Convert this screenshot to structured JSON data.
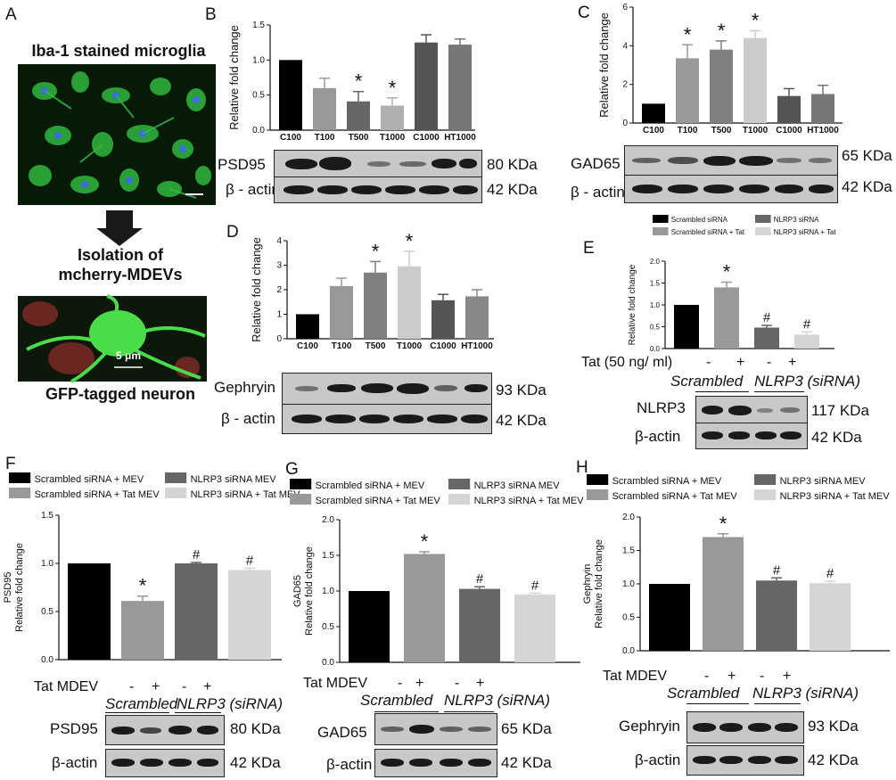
{
  "panels": {
    "A": {
      "label": "A",
      "title_top": "Iba-1 stained microglia",
      "step": "Isolation of",
      "step2": "mcherry-MDEVs",
      "title_bottom": "GFP-tagged neuron",
      "scale": "5 μm"
    },
    "B": {
      "label": "B"
    },
    "C": {
      "label": "C"
    },
    "D": {
      "label": "D"
    },
    "E": {
      "label": "E"
    },
    "F": {
      "label": "F"
    },
    "G": {
      "label": "G"
    },
    "H": {
      "label": "H"
    }
  },
  "blots": {
    "B": [
      {
        "name": "PSD95",
        "kda": "80 KDa"
      },
      {
        "name": "β - actin",
        "kda": "42 KDa"
      }
    ],
    "C": [
      {
        "name": "GAD65",
        "kda": "65 KDa"
      },
      {
        "name": "β - actin",
        "kda": "42 KDa"
      }
    ],
    "D": [
      {
        "name": "Gephryin",
        "kda": "93 KDa"
      },
      {
        "name": "β - actin",
        "kda": "42 KDa"
      }
    ],
    "E": [
      {
        "name": "NLRP3",
        "kda": "117 KDa"
      },
      {
        "name": "β-actin",
        "kda": "42 KDa"
      }
    ],
    "F": [
      {
        "name": "PSD95",
        "kda": "80 KDa"
      },
      {
        "name": "β-actin",
        "kda": "42 KDa"
      }
    ],
    "G": [
      {
        "name": "GAD65",
        "kda": "65 KDa"
      },
      {
        "name": "β-actin",
        "kda": "42 KDa"
      }
    ],
    "H": [
      {
        "name": "Gephryin",
        "kda": "93 KDa"
      },
      {
        "name": "β-actin",
        "kda": "42 KDa"
      }
    ]
  },
  "treatment_rows": {
    "E": {
      "label": "Tat (50 ng/ ml)",
      "signs": [
        "-",
        "+",
        "-",
        "+"
      ],
      "group1": "Scrambled",
      "group2": "NLRP3 (siRNA)"
    },
    "F": {
      "label": "Tat MDEV",
      "signs": [
        "-",
        "+",
        "-",
        "+"
      ],
      "group1": "Scrambled",
      "group2": "NLRP3 (siRNA)"
    },
    "G": {
      "label": "Tat MDEV",
      "signs": [
        "-",
        "+",
        "-",
        "+"
      ],
      "group1": "Scrambled",
      "group2": "NLRP3 (siRNA)"
    },
    "H": {
      "label": "Tat MDEV",
      "signs": [
        "-",
        "+",
        "-",
        "+"
      ],
      "group1": "Scrambled",
      "group2": "NLRP3 (siRNA)"
    }
  },
  "chart_data": [
    {
      "panel": "B",
      "type": "bar",
      "categories": [
        "C100",
        "T100",
        "T500",
        "T1000",
        "C1000",
        "HT1000"
      ],
      "values": [
        1.0,
        0.6,
        0.41,
        0.35,
        1.25,
        1.22
      ],
      "errors": [
        0,
        0.14,
        0.14,
        0.11,
        0.11,
        0.08
      ],
      "marks": [
        "",
        "",
        "*",
        "*",
        "",
        ""
      ],
      "colors": [
        "#000000",
        "#999999",
        "#666666",
        "#b0b0b0",
        "#555555",
        "#777777"
      ],
      "ylabel": "Relative fold change",
      "ylim": [
        0,
        1.5
      ],
      "yticks": [
        0.0,
        0.5,
        1.0,
        1.5
      ],
      "ytick_labels": [
        "0.0",
        "0.5",
        "1.0",
        "1.5"
      ]
    },
    {
      "panel": "C",
      "type": "bar",
      "categories": [
        "C100",
        "T100",
        "T500",
        "T1000",
        "C1000",
        "HT1000"
      ],
      "values": [
        1.0,
        3.35,
        3.8,
        4.4,
        1.4,
        1.5
      ],
      "errors": [
        0,
        0.7,
        0.45,
        0.38,
        0.38,
        0.45
      ],
      "marks": [
        "",
        "*",
        "*",
        "*",
        "",
        ""
      ],
      "colors": [
        "#000000",
        "#999999",
        "#808080",
        "#cccccc",
        "#555555",
        "#777777"
      ],
      "ylabel": "Relative fold change",
      "ylim": [
        0,
        6
      ],
      "yticks": [
        0,
        2,
        4,
        6
      ],
      "ytick_labels": [
        "0",
        "2",
        "4",
        "6"
      ]
    },
    {
      "panel": "D",
      "type": "bar",
      "categories": [
        "C100",
        "T100",
        "T500",
        "T1000",
        "C1000",
        "HT1000"
      ],
      "values": [
        1.0,
        2.15,
        2.7,
        2.95,
        1.57,
        1.73
      ],
      "errors": [
        0,
        0.32,
        0.45,
        0.62,
        0.24,
        0.27
      ],
      "marks": [
        "",
        "",
        "*",
        "*",
        "",
        ""
      ],
      "colors": [
        "#000000",
        "#999999",
        "#808080",
        "#cccccc",
        "#555555",
        "#888888"
      ],
      "ylabel": "Relative fold change",
      "ylim": [
        0,
        4
      ],
      "yticks": [
        0,
        1,
        2,
        3,
        4
      ],
      "ytick_labels": [
        "0",
        "1",
        "2",
        "3",
        "4"
      ]
    },
    {
      "panel": "E",
      "type": "bar",
      "categories": [
        "Scrambled siRNA",
        "Scrambled siRNA + Tat",
        "NLRP3 siRNA",
        "NLRP3 siRNA + Tat"
      ],
      "legend": [
        "Scrambled siRNA",
        "NLRP3 siRNA",
        "Scrambled siRNA + Tat",
        "NLRP3 siRNA + Tat"
      ],
      "legend_colors": [
        "#000000",
        "#666666",
        "#999999",
        "#d5d5d5"
      ],
      "values": [
        1.0,
        1.4,
        0.48,
        0.32
      ],
      "errors": [
        0,
        0.12,
        0.05,
        0.06
      ],
      "marks": [
        "",
        "*",
        "#",
        "#"
      ],
      "colors": [
        "#000000",
        "#999999",
        "#666666",
        "#d5d5d5"
      ],
      "ylabel": "Relative fold change",
      "ylim": [
        0,
        2.0
      ],
      "yticks": [
        0.0,
        0.5,
        1.0,
        1.5,
        2.0
      ],
      "ytick_labels": [
        "0.0",
        "0.5",
        "1.0",
        "1.5",
        "2.0"
      ]
    },
    {
      "panel": "F",
      "type": "bar",
      "categories": [
        "Scrambled siRNA + MEV",
        "Scrambled siRNA + Tat MEV",
        "NLRP3 siRNA MEV",
        "NLRP3 siRNA + Tat MEV"
      ],
      "legend": [
        "Scrambled siRNA + MEV",
        "NLRP3 siRNA MEV",
        "Scrambled siRNA + Tat MEV",
        "NLRP3 siRNA + Tat MEV"
      ],
      "legend_colors": [
        "#000000",
        "#666666",
        "#999999",
        "#d5d5d5"
      ],
      "values": [
        1.0,
        0.61,
        1.0,
        0.93
      ],
      "errors": [
        0,
        0.05,
        0.01,
        0.02
      ],
      "marks": [
        "",
        "*",
        "#",
        "#"
      ],
      "colors": [
        "#000000",
        "#999999",
        "#666666",
        "#d5d5d5"
      ],
      "ylabel": "PSD95\nRelative fold change",
      "ylim": [
        0,
        1.5
      ],
      "yticks": [
        0.0,
        0.5,
        1.0,
        1.5
      ],
      "ytick_labels": [
        "0.0",
        "0.5",
        "1.0",
        "1.5"
      ]
    },
    {
      "panel": "G",
      "type": "bar",
      "categories": [
        "Scrambled siRNA + MEV",
        "Scrambled siRNA + Tat MEV",
        "NLRP3 siRNA MEV",
        "NLRP3 siRNA + Tat MEV"
      ],
      "legend": [
        "Scrambled siRNA + MEV",
        "NLRP3 siRNA MEV",
        "Scrambled siRNA + Tat MEV",
        "NLRP3 siRNA + Tat MEV"
      ],
      "legend_colors": [
        "#000000",
        "#666666",
        "#999999",
        "#d5d5d5"
      ],
      "values": [
        1.0,
        1.52,
        1.03,
        0.95
      ],
      "errors": [
        0,
        0.03,
        0.03,
        0.02
      ],
      "marks": [
        "",
        "*",
        "#",
        "#"
      ],
      "colors": [
        "#000000",
        "#999999",
        "#666666",
        "#d5d5d5"
      ],
      "ylabel": "GAD65\nRelative fold change",
      "ylim": [
        0,
        2.0
      ],
      "yticks": [
        0.0,
        0.5,
        1.0,
        1.5,
        2.0
      ],
      "ytick_labels": [
        "0.0",
        "0.5",
        "1.0",
        "1.5",
        "2.0"
      ]
    },
    {
      "panel": "H",
      "type": "bar",
      "categories": [
        "Scrambled siRNA + MEV",
        "Scrambled siRNA + Tat MEV",
        "NLRP3 siRNA MEV",
        "NLRP3 siRNA + Tat MEV"
      ],
      "legend": [
        "Scrambled siRNA + MEV",
        "NLRP3 siRNA MEV",
        "Scrambled siRNA + Tat MEV",
        "NLRP3 siRNA + Tat MEV"
      ],
      "legend_colors": [
        "#000000",
        "#666666",
        "#999999",
        "#d5d5d5"
      ],
      "values": [
        1.0,
        1.7,
        1.05,
        1.01
      ],
      "errors": [
        0,
        0.05,
        0.04,
        0.03
      ],
      "marks": [
        "",
        "*",
        "#",
        "#"
      ],
      "colors": [
        "#000000",
        "#999999",
        "#666666",
        "#d5d5d5"
      ],
      "ylabel": "Gephryin\nRelative fold change",
      "ylim": [
        0,
        2.0
      ],
      "yticks": [
        0.0,
        0.5,
        1.0,
        1.5,
        2.0
      ],
      "ytick_labels": [
        "0.0",
        "0.5",
        "1.0",
        "1.5",
        "2.0"
      ]
    }
  ]
}
